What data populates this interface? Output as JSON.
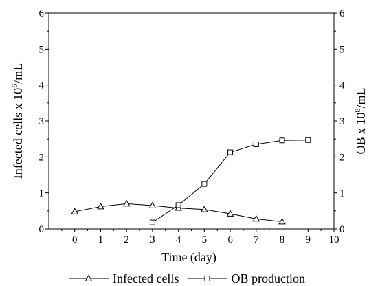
{
  "chart_data": {
    "type": "line",
    "xlabel": "Time (day)",
    "ylabel_left": "Infected cells x 10",
    "ylabel_left_sup": "6",
    "ylabel_left_unit": "/mL",
    "ylabel_right": "OB x 10",
    "ylabel_right_sup": "8",
    "ylabel_right_unit": "/mL",
    "xlim": [
      -1,
      10
    ],
    "ylim_left": [
      0,
      6
    ],
    "ylim_right": [
      0,
      6
    ],
    "x_ticks": [
      0,
      1,
      2,
      3,
      4,
      5,
      6,
      7,
      8,
      9,
      10
    ],
    "y_ticks_left": [
      0,
      1,
      2,
      3,
      4,
      5,
      6
    ],
    "y_ticks_right": [
      0,
      1,
      2,
      3,
      4,
      5,
      6
    ],
    "legend_position": "bottom",
    "series": [
      {
        "name": "Infected cells",
        "marker": "triangle",
        "axis": "left",
        "x": [
          0,
          1,
          2,
          3,
          4,
          5,
          6,
          7,
          8
        ],
        "values": [
          0.48,
          0.62,
          0.7,
          0.65,
          0.58,
          0.54,
          0.42,
          0.28,
          0.2
        ]
      },
      {
        "name": "OB production",
        "marker": "square",
        "axis": "right",
        "x": [
          3,
          4,
          5,
          6,
          7,
          8,
          9
        ],
        "values": [
          0.18,
          0.66,
          1.25,
          2.13,
          2.35,
          2.46,
          2.47
        ]
      }
    ]
  }
}
